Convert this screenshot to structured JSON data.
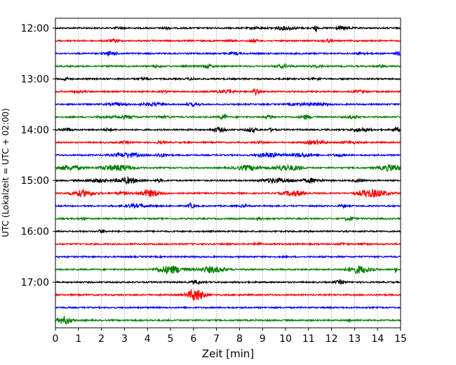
{
  "chart_data": {
    "type": "line",
    "subtype": "helicorder-seismogram",
    "xlabel": "Zeit  [min]",
    "ylabel": "UTC (Lokalzeit = UTC + 02:00)",
    "xlim": [
      0,
      15
    ],
    "x_ticks": [
      0,
      1,
      2,
      3,
      4,
      5,
      6,
      7,
      8,
      9,
      10,
      11,
      12,
      13,
      14,
      15
    ],
    "x_tick_labels": [
      "0",
      "1",
      "2",
      "3",
      "4",
      "5",
      "6",
      "7",
      "8",
      "9",
      "10",
      "11",
      "12",
      "13",
      "14",
      "15"
    ],
    "y_tick_labels": [
      "12:00",
      "13:00",
      "14:00",
      "15:00",
      "16:00",
      "17:00"
    ],
    "trace_interval_min": 15,
    "grid": "vertical dotted",
    "trace_colors": [
      "#000000",
      "#ff0000",
      "#0000ff",
      "#008000"
    ],
    "series": [
      {
        "start": "12:00",
        "color": "#000000",
        "bursts": [
          [
            2.8,
            0.15,
            1.2
          ],
          [
            4.8,
            0.15,
            1.2
          ],
          [
            8.7,
            0.15,
            1.2
          ],
          [
            10.0,
            0.35,
            2.2
          ],
          [
            11.3,
            0.05,
            7
          ],
          [
            12.5,
            0.25,
            1.8
          ]
        ]
      },
      {
        "start": "12:15",
        "color": "#ff0000",
        "bursts": [
          [
            2.5,
            0.2,
            1.5
          ],
          [
            7.6,
            0.1,
            1.3
          ],
          [
            8.6,
            0.15,
            1.6
          ],
          [
            11.8,
            0.15,
            1.5
          ]
        ]
      },
      {
        "start": "12:30",
        "color": "#0000ff",
        "bursts": [
          [
            2.4,
            0.2,
            2.3
          ],
          [
            7.8,
            0.2,
            1.5
          ],
          [
            13.3,
            0.15,
            1.5
          ],
          [
            14.9,
            0.1,
            2
          ]
        ]
      },
      {
        "start": "12:45",
        "color": "#008000",
        "bursts": [
          [
            4.4,
            0.15,
            1.2
          ],
          [
            6.6,
            0.2,
            2
          ],
          [
            9.9,
            0.2,
            1.7
          ],
          [
            11.4,
            0.15,
            1.5
          ],
          [
            14.2,
            0.15,
            1.3
          ]
        ]
      },
      {
        "start": "13:00",
        "color": "#000000",
        "bursts": [
          [
            0.4,
            0.1,
            2
          ],
          [
            3.9,
            0.15,
            1.3
          ],
          [
            5.9,
            0.15,
            1.2
          ],
          [
            11.3,
            0.15,
            1.3
          ]
        ]
      },
      {
        "start": "13:15",
        "color": "#ff0000",
        "bursts": [
          [
            1.0,
            0.2,
            1.2
          ],
          [
            4.8,
            0.15,
            1.2
          ],
          [
            7.4,
            0.3,
            2
          ],
          [
            8.7,
            0.1,
            3.5
          ],
          [
            13.2,
            0.2,
            1.5
          ]
        ]
      },
      {
        "start": "13:30",
        "color": "#0000ff",
        "bursts": [
          [
            2.7,
            0.3,
            1.5
          ],
          [
            4.2,
            0.3,
            2
          ],
          [
            6.0,
            0.2,
            1.7
          ],
          [
            10.6,
            0.3,
            1.4
          ],
          [
            11.4,
            0.3,
            1.8
          ]
        ]
      },
      {
        "start": "13:45",
        "color": "#008000",
        "bursts": [
          [
            2.0,
            0.15,
            1.1
          ],
          [
            3.0,
            0.3,
            2
          ],
          [
            4.7,
            0.2,
            1.3
          ],
          [
            7.3,
            0.1,
            3.3
          ],
          [
            9.3,
            0.15,
            2.3
          ],
          [
            10.9,
            0.15,
            2.8
          ],
          [
            12.9,
            0.2,
            1.6
          ]
        ]
      },
      {
        "start": "14:00",
        "color": "#000000",
        "bursts": [
          [
            0.5,
            0.15,
            2.2
          ],
          [
            2.3,
            0.1,
            2
          ],
          [
            7.1,
            0.2,
            2.7
          ],
          [
            8.5,
            0.15,
            2.8
          ],
          [
            9.4,
            0.1,
            2
          ],
          [
            13.3,
            0.3,
            2.2
          ],
          [
            14.8,
            0.1,
            3
          ]
        ]
      },
      {
        "start": "14:15",
        "color": "#ff0000",
        "bursts": [
          [
            3.0,
            0.2,
            1.3
          ],
          [
            4.6,
            0.15,
            1.2
          ],
          [
            8.9,
            0.15,
            1.3
          ],
          [
            11.3,
            0.3,
            2.5
          ],
          [
            12.8,
            0.2,
            1.6
          ]
        ]
      },
      {
        "start": "14:30",
        "color": "#0000ff",
        "bursts": [
          [
            3.1,
            0.4,
            3
          ],
          [
            4.6,
            0.2,
            2.3
          ],
          [
            9.3,
            0.35,
            3
          ],
          [
            10.7,
            0.3,
            2.5
          ],
          [
            12.3,
            0.15,
            1.6
          ]
        ]
      },
      {
        "start": "14:45",
        "color": "#008000",
        "bursts": [
          [
            0.6,
            0.4,
            3
          ],
          [
            2.3,
            0.3,
            2.2
          ],
          [
            2.9,
            0.35,
            3.3
          ],
          [
            8.4,
            0.4,
            3.3
          ],
          [
            9.9,
            0.3,
            3.7
          ],
          [
            10.5,
            0.2,
            2.4
          ],
          [
            14.6,
            0.35,
            4.3
          ]
        ]
      },
      {
        "start": "15:00",
        "color": "#000000",
        "bursts": [
          [
            1.8,
            0.3,
            2.2
          ],
          [
            3.1,
            0.35,
            3.8
          ],
          [
            4.5,
            0.1,
            1.5
          ],
          [
            9.5,
            0.35,
            3
          ],
          [
            10.2,
            0.15,
            1.5
          ],
          [
            11.1,
            0.3,
            2.8
          ],
          [
            13.2,
            0.15,
            1.5
          ]
        ]
      },
      {
        "start": "15:15",
        "color": "#ff0000",
        "bursts": [
          [
            1.2,
            0.35,
            4.2
          ],
          [
            2.9,
            0.2,
            1.6
          ],
          [
            4.1,
            0.35,
            4.5
          ],
          [
            10.4,
            0.35,
            3.5
          ],
          [
            13.5,
            0.3,
            3.2
          ],
          [
            14.0,
            0.35,
            3.8
          ]
        ]
      },
      {
        "start": "15:30",
        "color": "#0000ff",
        "bursts": [
          [
            3.5,
            0.4,
            2
          ],
          [
            5.9,
            0.1,
            3.2
          ],
          [
            8.2,
            0.15,
            1.2
          ],
          [
            12.5,
            0.1,
            2
          ]
        ]
      },
      {
        "start": "15:45",
        "color": "#008000",
        "bursts": [
          [
            1.2,
            0.1,
            1.5
          ],
          [
            8.9,
            0.1,
            1.3
          ],
          [
            12.8,
            0.15,
            2.3
          ]
        ]
      },
      {
        "start": "16:00",
        "color": "#000000",
        "bursts": [
          [
            2.0,
            0.1,
            2
          ]
        ]
      },
      {
        "start": "16:15",
        "color": "#ff0000",
        "bursts": [
          [
            8.8,
            0.1,
            1.6
          ],
          [
            12.5,
            0.1,
            1.6
          ],
          [
            13.4,
            0.1,
            1.3
          ]
        ]
      },
      {
        "start": "16:30",
        "color": "#0000ff",
        "bursts": []
      },
      {
        "start": "16:45",
        "color": "#008000",
        "bursts": [
          [
            5.0,
            0.4,
            5.2
          ],
          [
            6.8,
            0.4,
            4
          ],
          [
            13.2,
            0.35,
            5
          ],
          [
            14.8,
            0.03,
            4
          ]
        ]
      },
      {
        "start": "17:00",
        "color": "#000000",
        "bursts": [
          [
            6.1,
            0.15,
            2.3
          ],
          [
            12.4,
            0.15,
            2.4
          ]
        ]
      },
      {
        "start": "17:15",
        "color": "#ff0000",
        "bursts": [
          [
            6.1,
            0.25,
            8.5
          ]
        ]
      },
      {
        "start": "17:30",
        "color": "#0000ff",
        "bursts": []
      },
      {
        "start": "17:45",
        "color": "#008000",
        "bursts": [
          [
            0.4,
            0.2,
            5.5
          ],
          [
            12.8,
            0.05,
            2.2
          ]
        ]
      }
    ]
  }
}
